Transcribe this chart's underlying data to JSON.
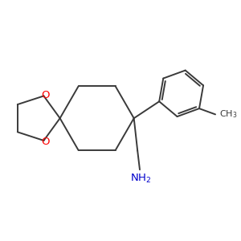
{
  "background_color": "#ffffff",
  "bond_color": "#3a3a3a",
  "oxygen_color": "#ff0000",
  "nitrogen_color": "#0000cc",
  "line_width": 1.4,
  "figsize": [
    3.0,
    3.0
  ],
  "dpi": 100,
  "scale": 1.0
}
